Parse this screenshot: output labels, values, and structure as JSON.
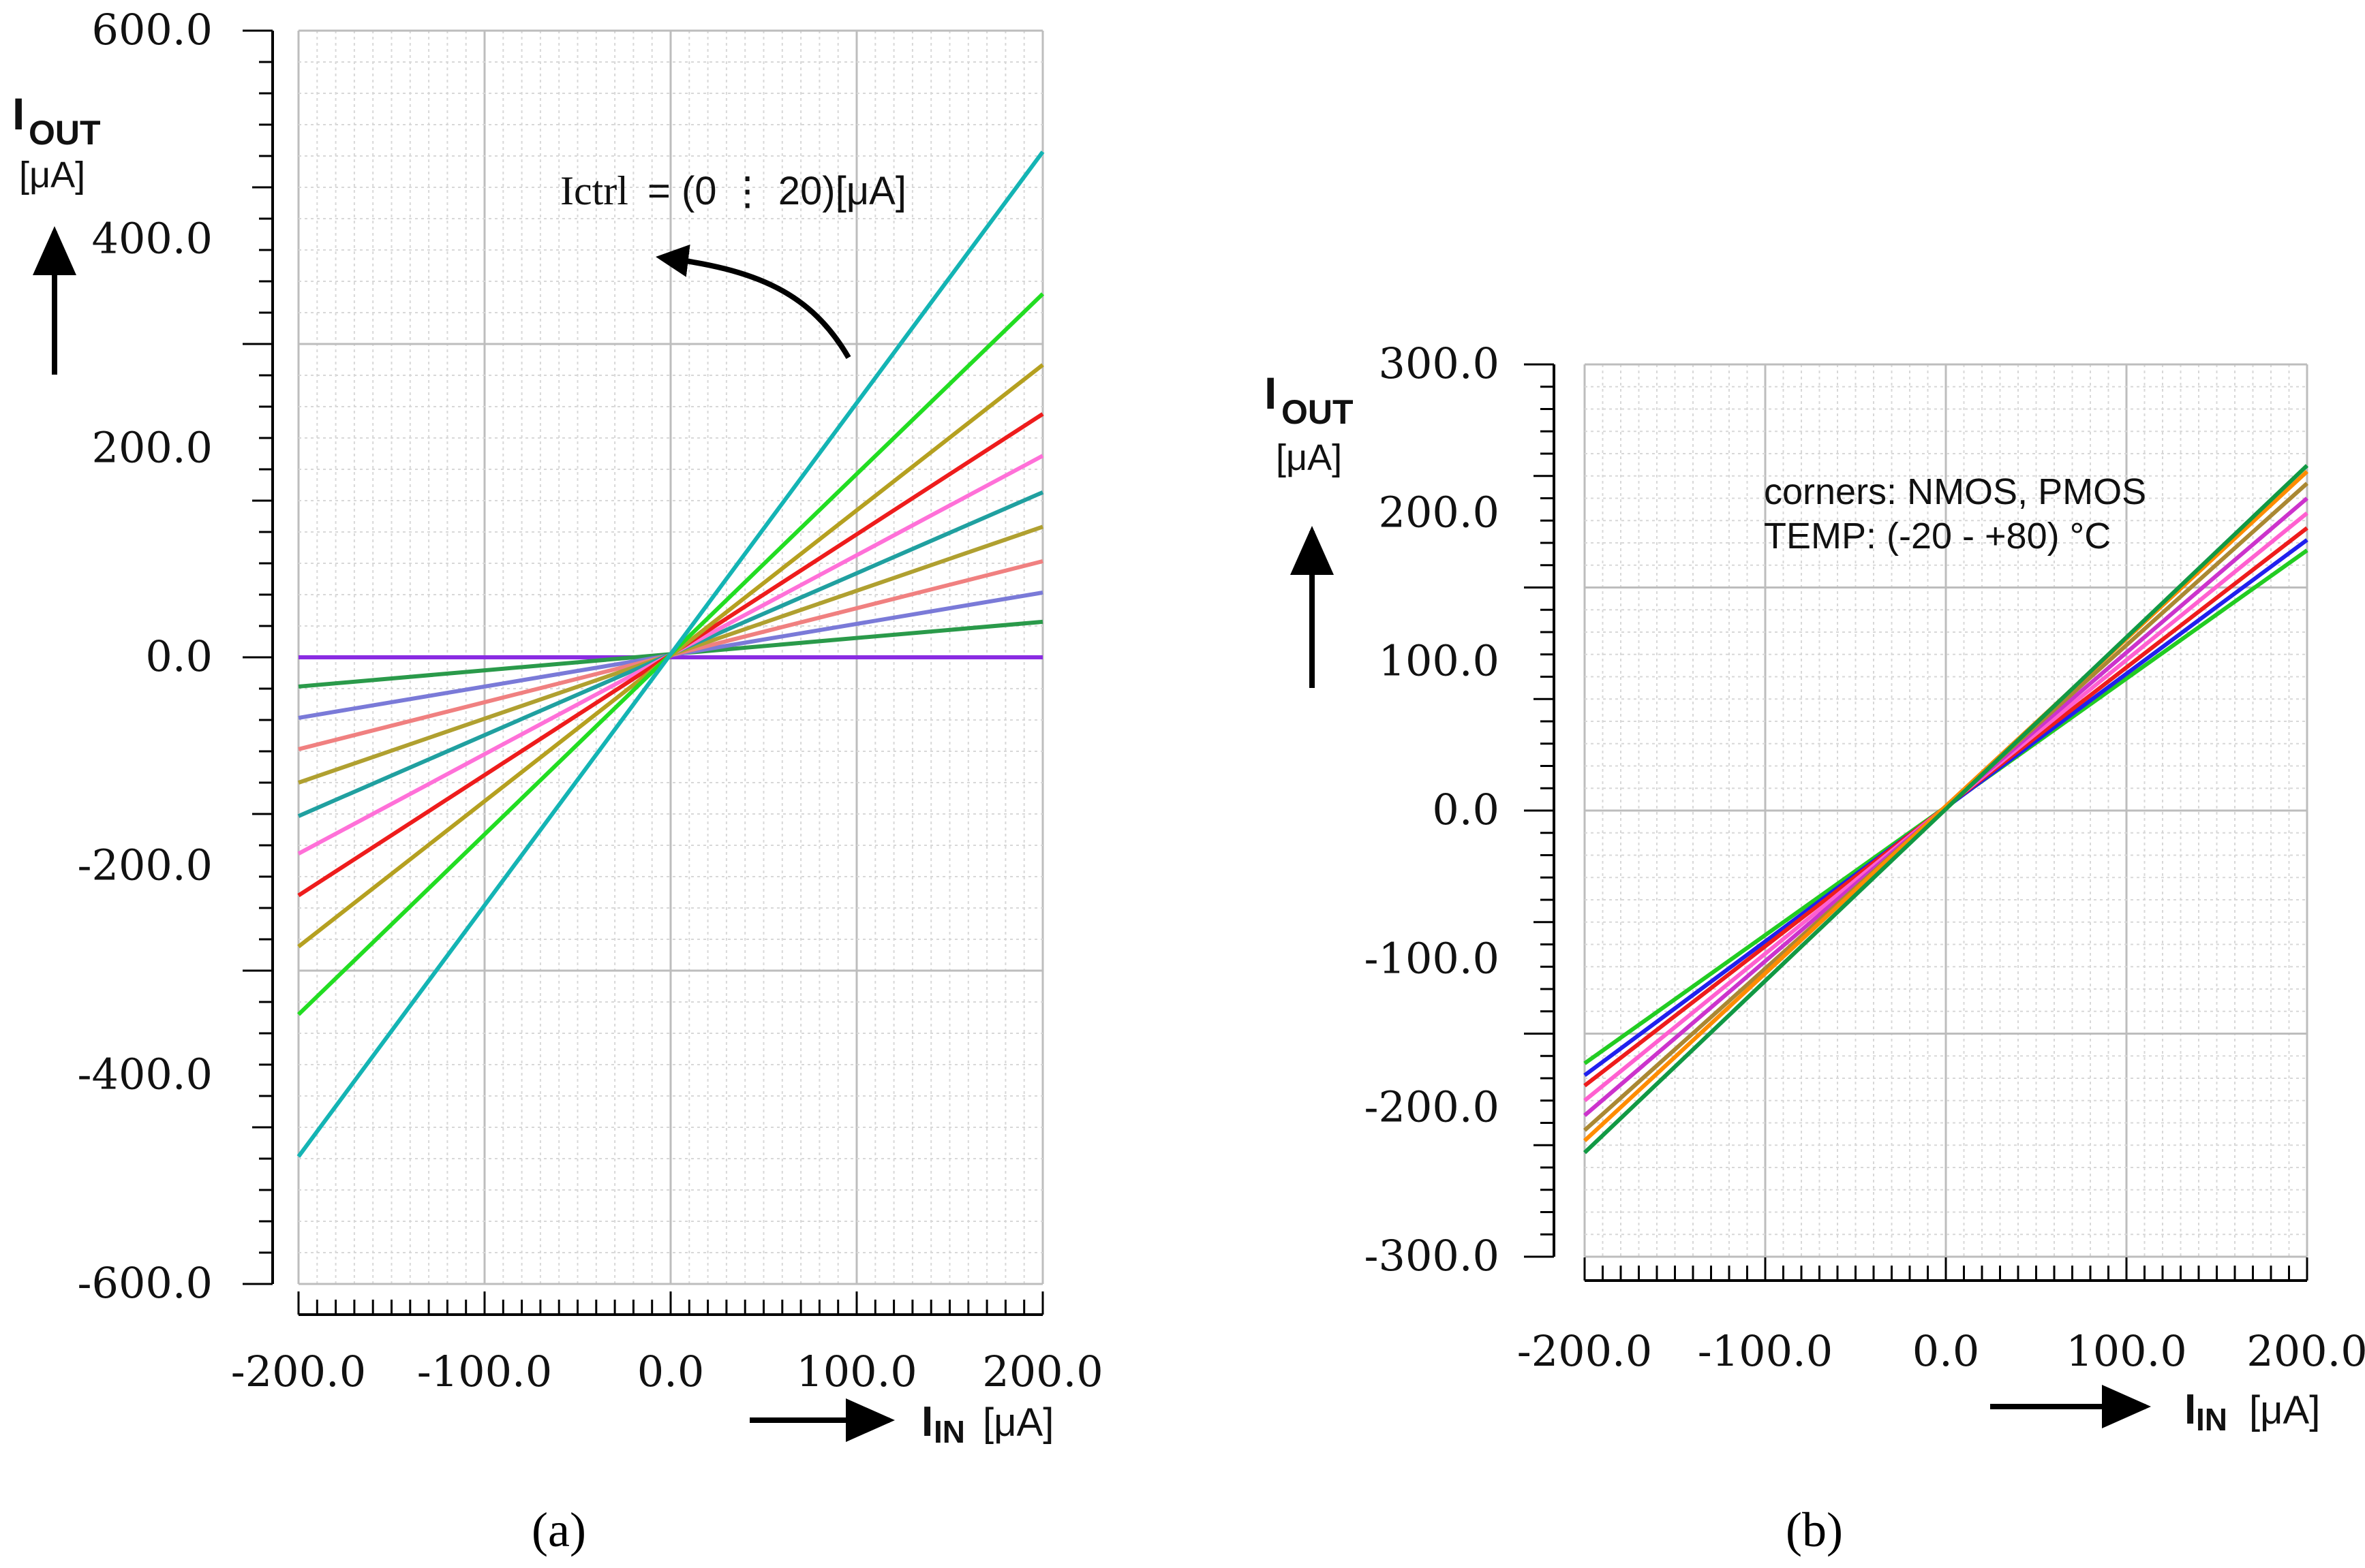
{
  "chart_data": [
    {
      "type": "line",
      "panel": "a",
      "caption": "(a)",
      "xlabel": {
        "main": "I",
        "sub": "IN",
        "unit": "[μA]"
      },
      "ylabel": {
        "main": "I",
        "sub": "OUT",
        "unit": "[μA]"
      },
      "xlim": [
        -200,
        200
      ],
      "ylim": [
        -600,
        600
      ],
      "xticks": [
        "-200.0",
        "-100.0",
        "0.0",
        "100.0",
        "200.0"
      ],
      "yticks": [
        "600.0",
        "400.0",
        "200.0",
        "0.0",
        "-200.0",
        "-400.0",
        "-600.0"
      ],
      "annotation": {
        "prefix": "Ictrl",
        "text": "= (0  ⋮  20)[μA]"
      },
      "series": [
        {
          "name": "s0",
          "color": "#8a2be2",
          "x": [
            -200,
            200
          ],
          "y": [
            0,
            0
          ]
        },
        {
          "name": "s1",
          "color": "#2a9a4a",
          "x": [
            -200,
            200
          ],
          "y": [
            -28,
            34
          ]
        },
        {
          "name": "s2",
          "color": "#7a7ad8",
          "x": [
            -200,
            200
          ],
          "y": [
            -58,
            62
          ]
        },
        {
          "name": "s3",
          "color": "#f08080",
          "x": [
            -200,
            200
          ],
          "y": [
            -88,
            92
          ]
        },
        {
          "name": "s4",
          "color": "#b0a030",
          "x": [
            -200,
            200
          ],
          "y": [
            -120,
            125
          ]
        },
        {
          "name": "s5",
          "color": "#20a0a0",
          "x": [
            -200,
            200
          ],
          "y": [
            -152,
            158
          ]
        },
        {
          "name": "s6",
          "color": "#ff70d8",
          "x": [
            -200,
            200
          ],
          "y": [
            -188,
            193
          ]
        },
        {
          "name": "s7",
          "color": "#ee1c1c",
          "x": [
            -200,
            200
          ],
          "y": [
            -228,
            233
          ]
        },
        {
          "name": "s8",
          "color": "#b5a020",
          "x": [
            -200,
            200
          ],
          "y": [
            -277,
            280
          ]
        },
        {
          "name": "s9",
          "color": "#22dd22",
          "x": [
            -200,
            200
          ],
          "y": [
            -342,
            348
          ]
        },
        {
          "name": "s10",
          "color": "#14b4b4",
          "x": [
            -200,
            200
          ],
          "y": [
            -478,
            484
          ]
        }
      ]
    },
    {
      "type": "line",
      "panel": "b",
      "caption": "(b)",
      "xlabel": {
        "main": "I",
        "sub": "IN",
        "unit": "[μA]"
      },
      "ylabel": {
        "main": "I",
        "sub": "OUT",
        "unit": "[μA]"
      },
      "xlim": [
        -200,
        200
      ],
      "ylim": [
        -300,
        300
      ],
      "xticks": [
        "-200.0",
        "-100.0",
        "0.0",
        "100.0",
        "200.0"
      ],
      "yticks": [
        "300.0",
        "200.0",
        "100.0",
        "0.0",
        "-100.0",
        "-200.0",
        "-300.0"
      ],
      "annotation": {
        "line1": "corners: NMOS, PMOS",
        "line2": "TEMP: (-20 - +80) °C"
      },
      "series": [
        {
          "name": "c1",
          "color": "#22cc22",
          "x": [
            -200,
            200
          ],
          "y": [
            -170,
            175
          ]
        },
        {
          "name": "c2",
          "color": "#2020ee",
          "x": [
            -200,
            200
          ],
          "y": [
            -178,
            182
          ]
        },
        {
          "name": "c3",
          "color": "#ee1c1c",
          "x": [
            -200,
            200
          ],
          "y": [
            -185,
            190
          ]
        },
        {
          "name": "c4",
          "color": "#ff60d0",
          "x": [
            -200,
            200
          ],
          "y": [
            -195,
            200
          ]
        },
        {
          "name": "c5",
          "color": "#cc33cc",
          "x": [
            -200,
            200
          ],
          "y": [
            -205,
            210
          ]
        },
        {
          "name": "c6",
          "color": "#aa8833",
          "x": [
            -200,
            200
          ],
          "y": [
            -215,
            220
          ]
        },
        {
          "name": "c7",
          "color": "#ff8c00",
          "x": [
            -200,
            200
          ],
          "y": [
            -222,
            228
          ]
        },
        {
          "name": "c8",
          "color": "#119944",
          "x": [
            -200,
            200
          ],
          "y": [
            -230,
            232
          ]
        }
      ]
    }
  ]
}
